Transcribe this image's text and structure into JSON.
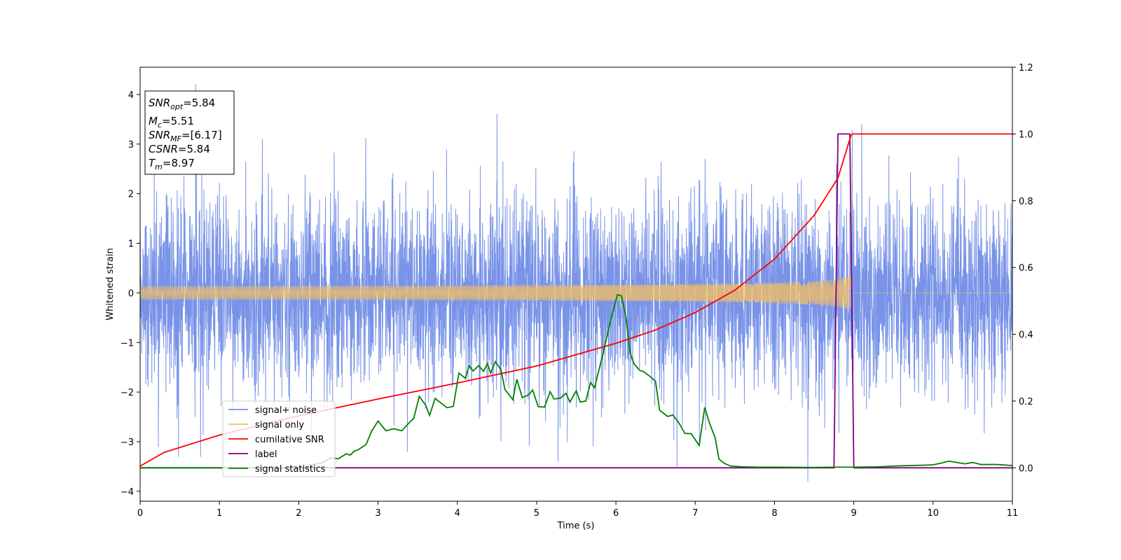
{
  "chart_data": {
    "type": "line",
    "xlabel": "Time (s)",
    "ylabel": "Whitened strain",
    "xlim": [
      0,
      11
    ],
    "ylim": [
      -4.2,
      4.55
    ],
    "y2lim": [
      -0.1,
      1.2
    ],
    "xticks": [
      0,
      1,
      2,
      3,
      4,
      5,
      6,
      7,
      8,
      9,
      10,
      11
    ],
    "yticks": [
      -4,
      -3,
      -2,
      -1,
      0,
      1,
      2,
      3,
      4
    ],
    "y2ticks": [
      0.0,
      0.2,
      0.4,
      0.6,
      0.8,
      1.0,
      1.2
    ],
    "grid": false,
    "legend_placement": "lower-left",
    "info_box": {
      "snr_opt": {
        "sym": "SNR",
        "sub": "opt",
        "val": "=5.84"
      },
      "mc": {
        "sym": "M",
        "sub": "c",
        "val": "=5.51"
      },
      "snr_mf": {
        "sym": "SNR",
        "sub": "MF",
        "val": "=[6.17]"
      },
      "csnr": {
        "sym": "CSNR",
        "sub": "",
        "val": "=5.84"
      },
      "tm": {
        "sym": "T",
        "sub": "m",
        "val": "=8.97"
      }
    },
    "series": [
      {
        "name": "signal+ noise",
        "axis": "left",
        "color": "#7893e8",
        "description_values": "whitened noise, roughly Gaussian with std ~1, spikes up to about 4.2 and down to about -3.8",
        "noise_std": 1.0,
        "spikes": [
          [
            0.7,
            4.2
          ],
          [
            4.5,
            3.6
          ],
          [
            9.1,
            3.4
          ],
          [
            8.42,
            -3.8
          ],
          [
            5.27,
            -3.4
          ],
          [
            6.77,
            -3.5
          ],
          [
            0.23,
            -3.1
          ],
          [
            3.37,
            -3.2
          ]
        ]
      },
      {
        "name": "signal only",
        "axis": "left",
        "color": "#f5c060",
        "chirp": {
          "t_merge": 8.97,
          "amp_start": 0.03,
          "amp_end": 0.4
        }
      },
      {
        "name": "cumilative SNR",
        "axis": "right",
        "color": "#ff0000",
        "x": [
          0,
          0.3,
          1,
          2,
          3,
          4,
          5,
          6,
          6.5,
          7,
          7.5,
          8,
          8.5,
          8.8,
          8.97,
          11
        ],
        "values": [
          0.005,
          0.046,
          0.098,
          0.156,
          0.206,
          0.254,
          0.305,
          0.373,
          0.413,
          0.465,
          0.532,
          0.625,
          0.756,
          0.868,
          1.0,
          1.0
        ]
      },
      {
        "name": "label",
        "axis": "right",
        "color": "#800080",
        "x": [
          0,
          8.75,
          8.8,
          8.95,
          9.0,
          11
        ],
        "values": [
          0,
          0,
          1,
          1,
          0,
          0
        ]
      },
      {
        "name": "signal statistics",
        "axis": "right",
        "color": "#008000",
        "x": [
          0,
          1,
          2,
          2.3,
          2.4,
          2.5,
          2.6,
          2.65,
          2.7,
          2.75,
          2.85,
          2.92,
          3.0,
          3.1,
          3.2,
          3.3,
          3.4,
          3.45,
          3.52,
          3.6,
          3.65,
          3.72,
          3.8,
          3.87,
          3.95,
          4.02,
          4.1,
          4.15,
          4.2,
          4.27,
          4.33,
          4.38,
          4.42,
          4.48,
          4.55,
          4.6,
          4.7,
          4.75,
          4.82,
          4.9,
          4.95,
          5.02,
          5.1,
          5.17,
          5.22,
          5.3,
          5.37,
          5.42,
          5.5,
          5.55,
          5.62,
          5.68,
          5.73,
          5.8,
          5.88,
          5.95,
          6.02,
          6.07,
          6.13,
          6.18,
          6.23,
          6.3,
          6.35,
          6.45,
          6.5,
          6.55,
          6.65,
          6.72,
          6.8,
          6.87,
          6.95,
          7.05,
          7.12,
          7.18,
          7.25,
          7.3,
          7.37,
          7.45,
          7.6,
          7.8,
          8.0,
          8.5,
          8.8,
          9.0,
          9.3,
          9.6,
          9.9,
          10.0,
          10.1,
          10.2,
          10.4,
          10.5,
          10.6,
          10.8,
          11
        ],
        "values": [
          0.0,
          0.0,
          0.001,
          0.015,
          0.03,
          0.027,
          0.042,
          0.038,
          0.05,
          0.054,
          0.07,
          0.11,
          0.14,
          0.111,
          0.117,
          0.111,
          0.137,
          0.148,
          0.214,
          0.188,
          0.157,
          0.208,
          0.193,
          0.18,
          0.184,
          0.284,
          0.268,
          0.306,
          0.29,
          0.306,
          0.289,
          0.312,
          0.284,
          0.318,
          0.294,
          0.235,
          0.204,
          0.265,
          0.21,
          0.219,
          0.233,
          0.183,
          0.182,
          0.228,
          0.206,
          0.209,
          0.223,
          0.197,
          0.231,
          0.197,
          0.2,
          0.255,
          0.24,
          0.306,
          0.386,
          0.458,
          0.519,
          0.515,
          0.446,
          0.344,
          0.311,
          0.292,
          0.288,
          0.27,
          0.259,
          0.173,
          0.154,
          0.158,
          0.132,
          0.103,
          0.102,
          0.067,
          0.181,
          0.134,
          0.091,
          0.026,
          0.013,
          0.005,
          0.003,
          0.002,
          0.002,
          0.001,
          0.002,
          0.002,
          0.003,
          0.006,
          0.008,
          0.009,
          0.014,
          0.02,
          0.012,
          0.016,
          0.01,
          0.01,
          0.007
        ]
      }
    ]
  }
}
